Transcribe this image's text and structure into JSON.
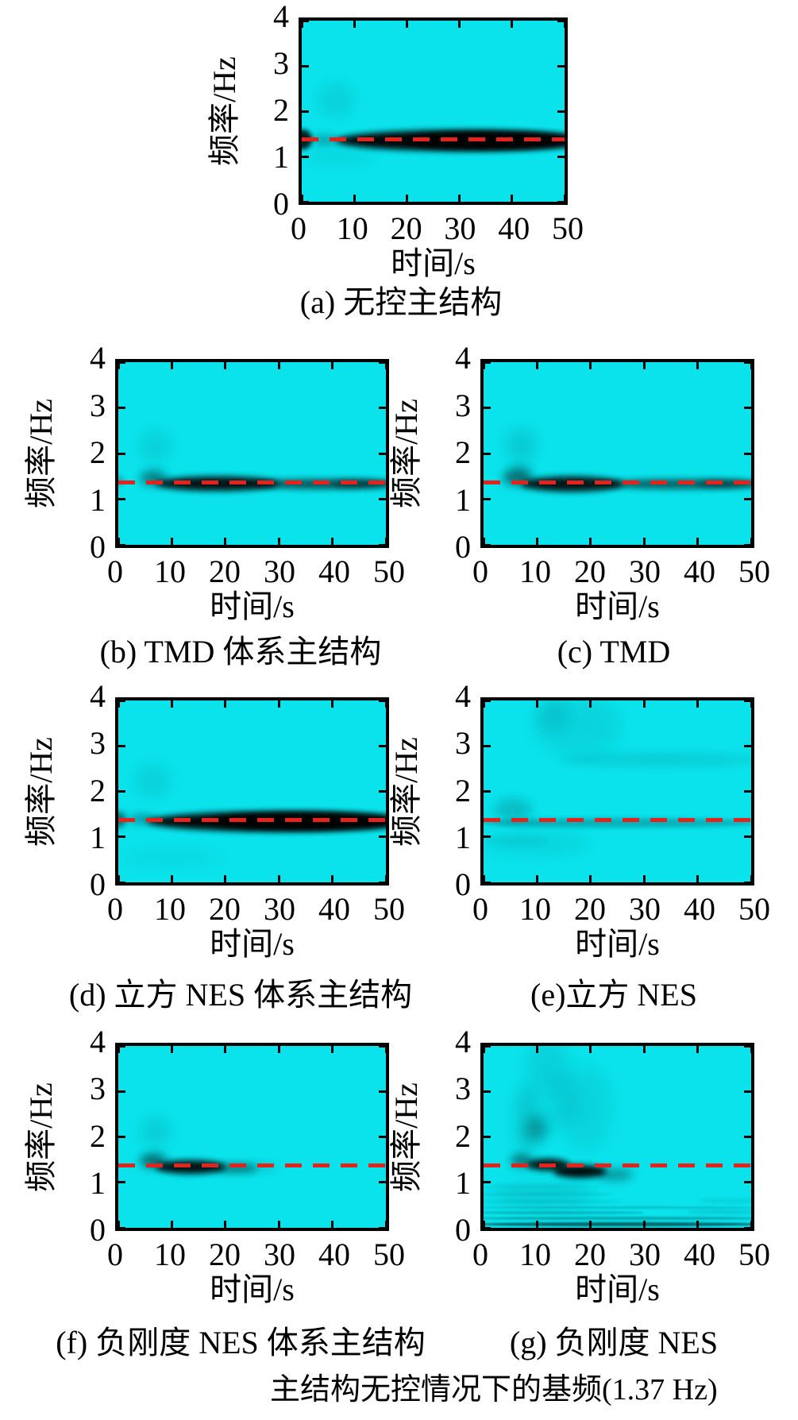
{
  "figure": {
    "colors": {
      "plot_bg": "#0ae3ec",
      "band": "#000000",
      "dashed_line": "#e5231c",
      "frame": "#000000",
      "text": "#000000"
    },
    "legend": {
      "label": "主结构无控情况下的基频(1.37 Hz)",
      "line_style": "red-dashed",
      "frequency_hz": 1.37
    }
  },
  "chart_data": [
    {
      "id": "a",
      "type": "heatmap",
      "caption": "(a)  无控主结构",
      "xlabel": "时间/s",
      "ylabel": "频率/Hz",
      "xlim": [
        0,
        50
      ],
      "ylim": [
        0,
        4
      ],
      "xticks": [
        0,
        10,
        20,
        30,
        40,
        50
      ],
      "yticks": [
        0,
        1,
        2,
        3,
        4
      ],
      "dashed_line_hz": 1.37,
      "energy_regions": [
        {
          "t": [
            6.5,
            53
          ],
          "f": [
            1.13,
            1.58
          ],
          "o": 0.97,
          "b": 4
        },
        {
          "t": [
            20,
            54
          ],
          "f": [
            1.15,
            1.55
          ],
          "o": 0.95,
          "b": 4
        },
        {
          "t": [
            -1.5,
            2
          ],
          "f": [
            1.15,
            1.6
          ],
          "o": 0.85,
          "b": 3
        },
        {
          "t": [
            2,
            7
          ],
          "f": [
            1.25,
            1.5
          ],
          "o": 0.25,
          "b": 5
        },
        {
          "t": [
            3,
            10
          ],
          "f": [
            1.85,
            2.65
          ],
          "o": 0.07,
          "b": 9
        },
        {
          "t": [
            0,
            14
          ],
          "f": [
            0.8,
            1.15
          ],
          "o": 0.05,
          "b": 9
        }
      ]
    },
    {
      "id": "b",
      "type": "heatmap",
      "caption": "(b) TMD 体系主结构",
      "xlabel": "时间/s",
      "ylabel": "频率/Hz",
      "xlim": [
        0,
        50
      ],
      "ylim": [
        0,
        4
      ],
      "xticks": [
        0,
        10,
        20,
        30,
        40,
        50
      ],
      "yticks": [
        0,
        1,
        2,
        3,
        4
      ],
      "dashed_line_hz": 1.37,
      "energy_regions": [
        {
          "t": [
            4,
            9
          ],
          "f": [
            1.3,
            1.62
          ],
          "o": 0.45,
          "b": 6
        },
        {
          "t": [
            7,
            30
          ],
          "f": [
            1.18,
            1.5
          ],
          "o": 0.92,
          "b": 4
        },
        {
          "t": [
            25,
            51
          ],
          "f": [
            1.22,
            1.45
          ],
          "o": 0.6,
          "b": 4
        },
        {
          "t": [
            40,
            52
          ],
          "f": [
            1.25,
            1.43
          ],
          "o": 0.45,
          "b": 4
        },
        {
          "t": [
            4,
            10
          ],
          "f": [
            1.8,
            2.5
          ],
          "o": 0.08,
          "b": 9
        },
        {
          "t": [
            -1,
            1
          ],
          "f": [
            1.3,
            1.5
          ],
          "o": 0.25,
          "b": 4
        }
      ]
    },
    {
      "id": "c",
      "type": "heatmap",
      "caption": "(c) TMD",
      "xlabel": "时间/s",
      "ylabel": "频率/Hz",
      "xlim": [
        0,
        50
      ],
      "ylim": [
        0,
        4
      ],
      "xticks": [
        0,
        10,
        20,
        30,
        40,
        50
      ],
      "yticks": [
        0,
        1,
        2,
        3,
        4
      ],
      "dashed_line_hz": 1.37,
      "energy_regions": [
        {
          "t": [
            3.5,
            9
          ],
          "f": [
            1.3,
            1.65
          ],
          "o": 0.5,
          "b": 6
        },
        {
          "t": [
            7,
            26
          ],
          "f": [
            1.17,
            1.5
          ],
          "o": 0.9,
          "b": 4
        },
        {
          "t": [
            22,
            51
          ],
          "f": [
            1.22,
            1.45
          ],
          "o": 0.55,
          "b": 4
        },
        {
          "t": [
            40,
            52
          ],
          "f": [
            1.25,
            1.42
          ],
          "o": 0.4,
          "b": 4
        },
        {
          "t": [
            4,
            10
          ],
          "f": [
            1.8,
            2.55
          ],
          "o": 0.1,
          "b": 9
        },
        {
          "t": [
            5,
            9
          ],
          "f": [
            1.55,
            1.75
          ],
          "o": 0.12,
          "b": 6
        }
      ]
    },
    {
      "id": "d",
      "type": "heatmap",
      "caption": "(d)  立方 NES 体系主结构",
      "xlabel": "时间/s",
      "ylabel": "频率/Hz",
      "xlim": [
        0,
        50
      ],
      "ylim": [
        0,
        4
      ],
      "xticks": [
        0,
        10,
        20,
        30,
        40,
        50
      ],
      "yticks": [
        0,
        1,
        2,
        3,
        4
      ],
      "dashed_line_hz": 1.37,
      "energy_regions": [
        {
          "t": [
            5.5,
            53
          ],
          "f": [
            1.12,
            1.55
          ],
          "o": 0.96,
          "b": 4
        },
        {
          "t": [
            18,
            54
          ],
          "f": [
            1.15,
            1.53
          ],
          "o": 0.93,
          "b": 4
        },
        {
          "t": [
            -1.5,
            1.5
          ],
          "f": [
            1.2,
            1.55
          ],
          "o": 0.5,
          "b": 4
        },
        {
          "t": [
            2,
            7
          ],
          "f": [
            1.28,
            1.5
          ],
          "o": 0.3,
          "b": 5
        },
        {
          "t": [
            3,
            10
          ],
          "f": [
            1.85,
            2.6
          ],
          "o": 0.07,
          "b": 9
        },
        {
          "t": [
            0,
            20
          ],
          "f": [
            0.35,
            0.75
          ],
          "o": 0.04,
          "b": 9
        }
      ]
    },
    {
      "id": "e",
      "type": "heatmap",
      "caption": "(e)立方 NES",
      "xlabel": "时间/s",
      "ylabel": "频率/Hz",
      "xlim": [
        0,
        50
      ],
      "ylim": [
        0,
        4
      ],
      "xticks": [
        0,
        10,
        20,
        30,
        40,
        50
      ],
      "yticks": [
        0,
        1,
        2,
        3,
        4
      ],
      "dashed_line_hz": 1.37,
      "energy_regions": [
        {
          "t": [
            -1,
            52
          ],
          "f": [
            1.2,
            1.42
          ],
          "o": 0.22,
          "b": 3
        },
        {
          "t": [
            2,
            9
          ],
          "f": [
            1.35,
            1.85
          ],
          "o": 0.16,
          "b": 7
        },
        {
          "t": [
            14,
            52
          ],
          "f": [
            2.55,
            2.85
          ],
          "o": 0.09,
          "b": 6
        },
        {
          "t": [
            9,
            26
          ],
          "f": [
            2.8,
            4.1
          ],
          "o": 0.06,
          "b": 10
        },
        {
          "t": [
            10,
            16
          ],
          "f": [
            3.3,
            4.05
          ],
          "o": 0.07,
          "b": 8
        },
        {
          "t": [
            0,
            20
          ],
          "f": [
            0.6,
            1.1
          ],
          "o": 0.06,
          "b": 9
        },
        {
          "t": [
            0,
            12
          ],
          "f": [
            0.85,
            1.0
          ],
          "o": 0.08,
          "b": 5
        }
      ]
    },
    {
      "id": "f",
      "type": "heatmap",
      "caption": "(f)  负刚度 NES 体系主结构",
      "xlabel": "时间/s",
      "ylabel": "频率/Hz",
      "xlim": [
        0,
        50
      ],
      "ylim": [
        0,
        4
      ],
      "xticks": [
        0,
        10,
        20,
        30,
        40,
        50
      ],
      "yticks": [
        0,
        1,
        2,
        3,
        4
      ],
      "dashed_line_hz": 1.37,
      "energy_regions": [
        {
          "t": [
            4,
            9
          ],
          "f": [
            1.32,
            1.62
          ],
          "o": 0.55,
          "b": 6
        },
        {
          "t": [
            7,
            20
          ],
          "f": [
            1.18,
            1.48
          ],
          "o": 0.92,
          "b": 4
        },
        {
          "t": [
            18,
            26
          ],
          "f": [
            1.2,
            1.42
          ],
          "o": 0.45,
          "b": 5
        },
        {
          "t": [
            24,
            30
          ],
          "f": [
            1.25,
            1.4
          ],
          "o": 0.15,
          "b": 6
        },
        {
          "t": [
            4,
            10
          ],
          "f": [
            1.8,
            2.45
          ],
          "o": 0.09,
          "b": 9
        }
      ]
    },
    {
      "id": "g",
      "type": "heatmap",
      "caption": "(g)  负刚度 NES",
      "xlabel": "时间/s",
      "ylabel": "频率/Hz",
      "xlim": [
        0,
        50
      ],
      "ylim": [
        0,
        4
      ],
      "xticks": [
        0,
        10,
        20,
        30,
        40,
        50
      ],
      "yticks": [
        0,
        1,
        2,
        3,
        4
      ],
      "dashed_line_hz": 1.37,
      "energy_regions": [
        {
          "t": [
            5,
            9
          ],
          "f": [
            1.35,
            1.6
          ],
          "o": 0.5,
          "b": 6
        },
        {
          "t": [
            8,
            16
          ],
          "f": [
            1.25,
            1.52
          ],
          "o": 0.9,
          "b": 4
        },
        {
          "t": [
            13,
            23
          ],
          "f": [
            1.1,
            1.38
          ],
          "o": 0.95,
          "b": 4
        },
        {
          "t": [
            21,
            28
          ],
          "f": [
            1.05,
            1.3
          ],
          "o": 0.35,
          "b": 6
        },
        {
          "t": [
            8,
            12
          ],
          "f": [
            1.9,
            2.45
          ],
          "o": 0.3,
          "b": 8
        },
        {
          "t": [
            6,
            10
          ],
          "f": [
            1.6,
            3.2
          ],
          "o": 0.12,
          "b": 9
        },
        {
          "t": [
            8,
            16
          ],
          "f": [
            3.0,
            4.1
          ],
          "o": 0.08,
          "b": 10
        },
        {
          "t": [
            14,
            24
          ],
          "f": [
            1.7,
            3.6
          ],
          "o": 0.06,
          "b": 10
        },
        {
          "t": [
            10,
            18
          ],
          "f": [
            2.2,
            3.3
          ],
          "o": 0.05,
          "b": 10
        },
        {
          "t": [
            2,
            20
          ],
          "f": [
            0.4,
            1.0
          ],
          "o": 0.06,
          "b": 10
        },
        {
          "t": [
            -1,
            52
          ],
          "f": [
            0.04,
            0.12
          ],
          "o": 0.55,
          "b": 1
        },
        {
          "t": [
            -1,
            52
          ],
          "f": [
            0.18,
            0.24
          ],
          "o": 0.25,
          "b": 1
        },
        {
          "t": [
            -1,
            30
          ],
          "f": [
            0.3,
            0.36
          ],
          "o": 0.18,
          "b": 1
        },
        {
          "t": [
            -1,
            52
          ],
          "f": [
            0.42,
            0.48
          ],
          "o": 0.15,
          "b": 1
        },
        {
          "t": [
            -1,
            26
          ],
          "f": [
            0.55,
            0.62
          ],
          "o": 0.12,
          "b": 2
        },
        {
          "t": [
            -1,
            24
          ],
          "f": [
            0.7,
            0.78
          ],
          "o": 0.1,
          "b": 2
        },
        {
          "t": [
            0,
            22
          ],
          "f": [
            0.85,
            0.95
          ],
          "o": 0.1,
          "b": 3
        },
        {
          "t": [
            38,
            52
          ],
          "f": [
            0.3,
            0.4
          ],
          "o": 0.1,
          "b": 2
        },
        {
          "t": [
            40,
            52
          ],
          "f": [
            0.55,
            0.65
          ],
          "o": 0.08,
          "b": 2
        }
      ]
    }
  ]
}
